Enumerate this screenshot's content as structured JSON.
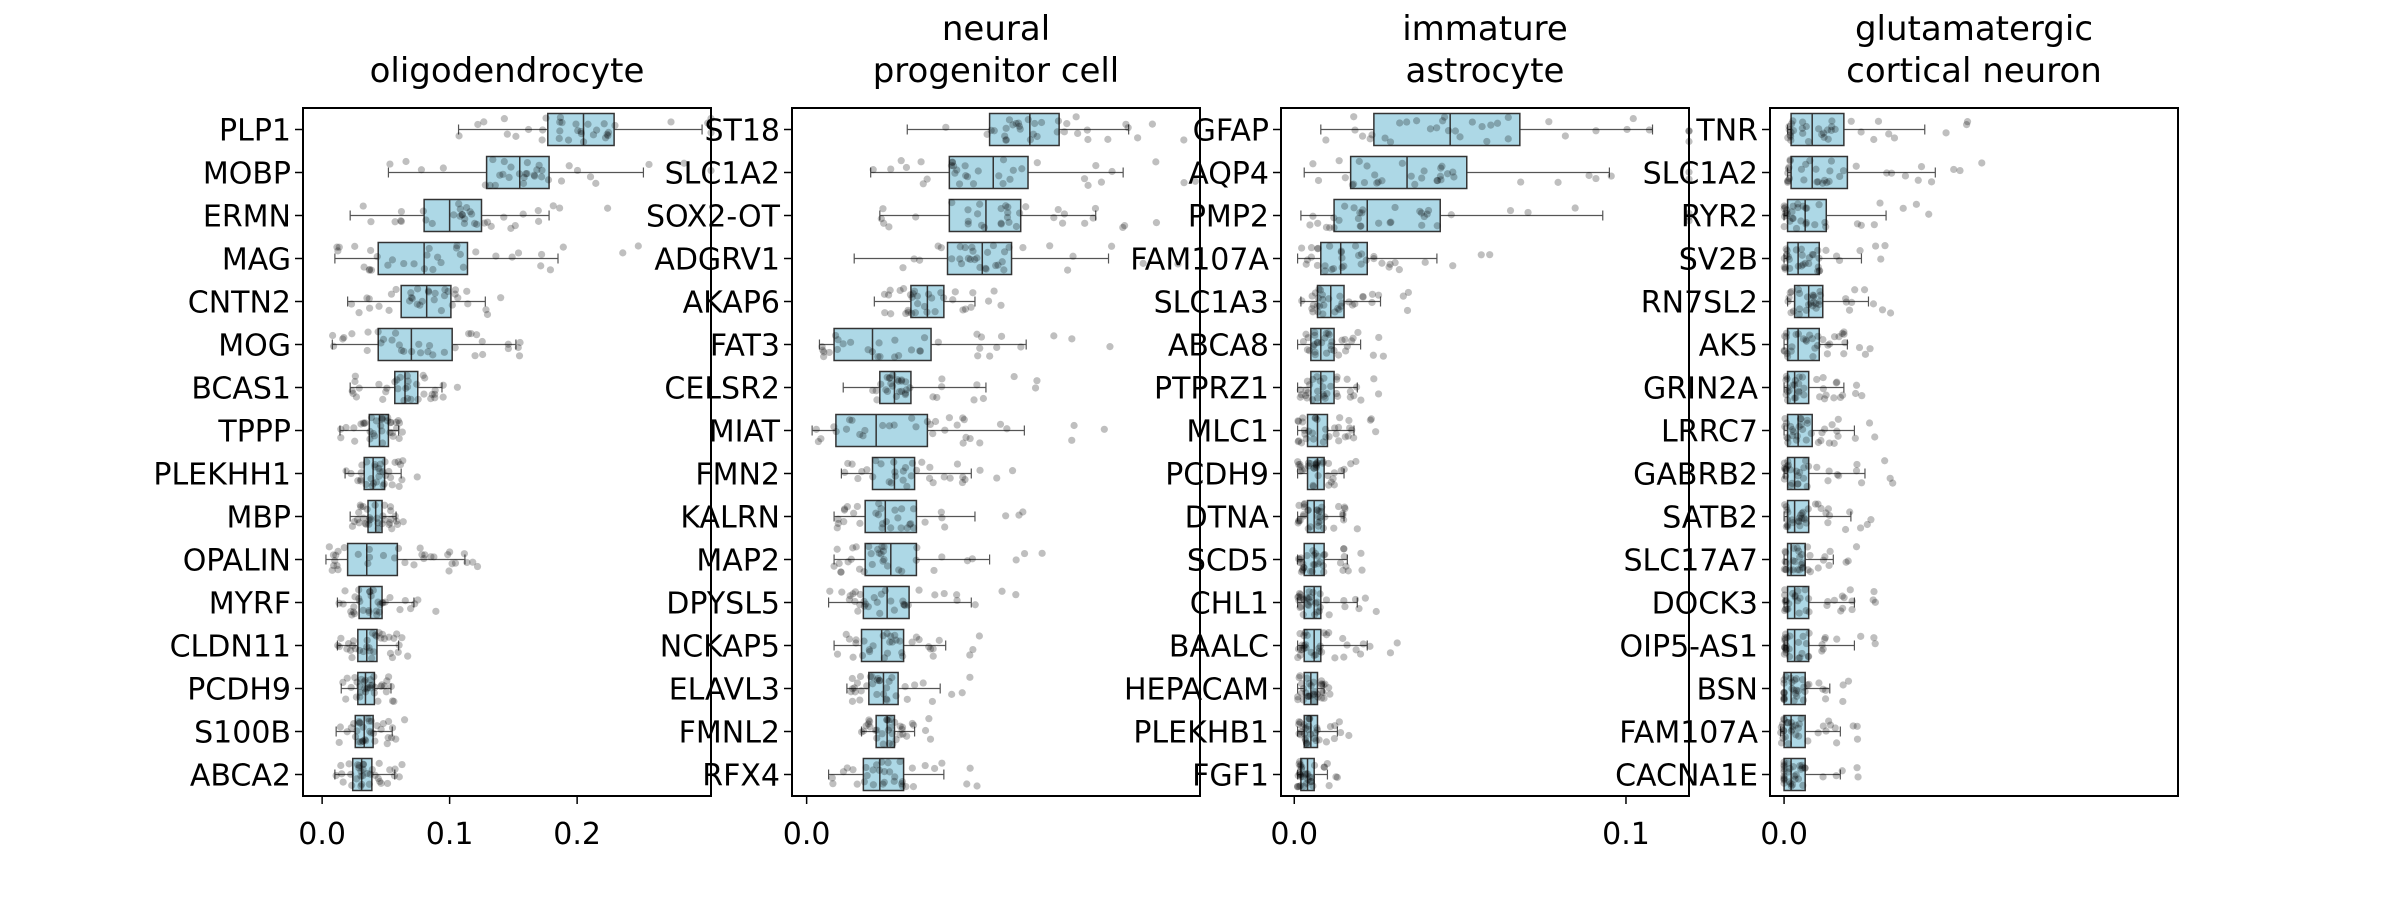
{
  "chart_data": [
    {
      "type": "box",
      "title": "oligodendrocyte",
      "xlim": [
        -0.015,
        0.305
      ],
      "xticks": [
        0.0,
        0.1,
        0.2
      ],
      "xtick_labels": [
        "0.0",
        "0.1",
        "0.2"
      ],
      "genes": [
        "PLP1",
        "MOBP",
        "ERMN",
        "MAG",
        "CNTN2",
        "MOG",
        "BCAS1",
        "TPPP",
        "PLEKHH1",
        "MBP",
        "OPALIN",
        "MYRF",
        "CLDN11",
        "PCDH9",
        "S100B",
        "ABCA2"
      ],
      "stats": [
        {
          "q1": 0.177,
          "median": 0.205,
          "q3": 0.229,
          "wmin": 0.107,
          "wmax": 0.298
        },
        {
          "q1": 0.129,
          "median": 0.155,
          "q3": 0.178,
          "wmin": 0.052,
          "wmax": 0.252
        },
        {
          "q1": 0.08,
          "median": 0.1,
          "q3": 0.125,
          "wmin": 0.022,
          "wmax": 0.178
        },
        {
          "q1": 0.044,
          "median": 0.08,
          "q3": 0.114,
          "wmin": 0.01,
          "wmax": 0.185
        },
        {
          "q1": 0.062,
          "median": 0.082,
          "q3": 0.101,
          "wmin": 0.02,
          "wmax": 0.128
        },
        {
          "q1": 0.044,
          "median": 0.07,
          "q3": 0.102,
          "wmin": 0.008,
          "wmax": 0.152
        },
        {
          "q1": 0.057,
          "median": 0.065,
          "q3": 0.075,
          "wmin": 0.022,
          "wmax": 0.094
        },
        {
          "q1": 0.037,
          "median": 0.045,
          "q3": 0.052,
          "wmin": 0.014,
          "wmax": 0.06
        },
        {
          "q1": 0.033,
          "median": 0.04,
          "q3": 0.049,
          "wmin": 0.018,
          "wmax": 0.062
        },
        {
          "q1": 0.036,
          "median": 0.042,
          "q3": 0.047,
          "wmin": 0.022,
          "wmax": 0.058
        },
        {
          "q1": 0.02,
          "median": 0.035,
          "q3": 0.059,
          "wmin": 0.003,
          "wmax": 0.112
        },
        {
          "q1": 0.029,
          "median": 0.038,
          "q3": 0.047,
          "wmin": 0.012,
          "wmax": 0.072
        },
        {
          "q1": 0.028,
          "median": 0.035,
          "q3": 0.043,
          "wmin": 0.012,
          "wmax": 0.06
        },
        {
          "q1": 0.028,
          "median": 0.034,
          "q3": 0.041,
          "wmin": 0.015,
          "wmax": 0.054
        },
        {
          "q1": 0.026,
          "median": 0.033,
          "q3": 0.04,
          "wmin": 0.011,
          "wmax": 0.055
        },
        {
          "q1": 0.024,
          "median": 0.031,
          "q3": 0.039,
          "wmin": 0.01,
          "wmax": 0.057
        }
      ]
    },
    {
      "type": "box",
      "title": "neural\nprogenitor cell",
      "xlim": [
        -0.008,
        0.215
      ],
      "xticks": [
        0.0
      ],
      "xtick_labels": [
        "0.0"
      ],
      "genes": [
        "ST18",
        "SLC1A2",
        "SOX2-OT",
        "ADGRV1",
        "AKAP6",
        "FAT3",
        "CELSR2",
        "MIAT",
        "FMN2",
        "KALRN",
        "MAP2",
        "DPYSL5",
        "NCKAP5",
        "ELAVL3",
        "FMNL2",
        "RFX4"
      ],
      "stats": [
        {
          "q1": 0.1,
          "median": 0.122,
          "q3": 0.138,
          "wmin": 0.055,
          "wmax": 0.176
        },
        {
          "q1": 0.078,
          "median": 0.102,
          "q3": 0.121,
          "wmin": 0.035,
          "wmax": 0.173
        },
        {
          "q1": 0.078,
          "median": 0.098,
          "q3": 0.117,
          "wmin": 0.04,
          "wmax": 0.158
        },
        {
          "q1": 0.077,
          "median": 0.096,
          "q3": 0.112,
          "wmin": 0.026,
          "wmax": 0.165
        },
        {
          "q1": 0.057,
          "median": 0.066,
          "q3": 0.075,
          "wmin": 0.037,
          "wmax": 0.092
        },
        {
          "q1": 0.015,
          "median": 0.036,
          "q3": 0.068,
          "wmin": 0.007,
          "wmax": 0.12
        },
        {
          "q1": 0.04,
          "median": 0.048,
          "q3": 0.057,
          "wmin": 0.02,
          "wmax": 0.098
        },
        {
          "q1": 0.016,
          "median": 0.038,
          "q3": 0.066,
          "wmin": 0.003,
          "wmax": 0.119
        },
        {
          "q1": 0.036,
          "median": 0.048,
          "q3": 0.059,
          "wmin": 0.019,
          "wmax": 0.09
        },
        {
          "q1": 0.032,
          "median": 0.043,
          "q3": 0.06,
          "wmin": 0.015,
          "wmax": 0.092
        },
        {
          "q1": 0.032,
          "median": 0.046,
          "q3": 0.06,
          "wmin": 0.015,
          "wmax": 0.1
        },
        {
          "q1": 0.031,
          "median": 0.044,
          "q3": 0.056,
          "wmin": 0.012,
          "wmax": 0.09
        },
        {
          "q1": 0.03,
          "median": 0.041,
          "q3": 0.053,
          "wmin": 0.015,
          "wmax": 0.076
        },
        {
          "q1": 0.034,
          "median": 0.042,
          "q3": 0.05,
          "wmin": 0.022,
          "wmax": 0.073
        },
        {
          "q1": 0.038,
          "median": 0.044,
          "q3": 0.048,
          "wmin": 0.03,
          "wmax": 0.059
        },
        {
          "q1": 0.031,
          "median": 0.04,
          "q3": 0.053,
          "wmin": 0.012,
          "wmax": 0.075
        }
      ]
    },
    {
      "type": "box",
      "title": "immature\nastrocyte",
      "xlim": [
        -0.004,
        0.119
      ],
      "xticks": [
        0.0,
        0.1
      ],
      "xtick_labels": [
        "0.0",
        "0.1"
      ],
      "genes": [
        "GFAP",
        "AQP4",
        "PMP2",
        "FAM107A",
        "SLC1A3",
        "ABCA8",
        "PTPRZ1",
        "MLC1",
        "PCDH9",
        "DTNA",
        "SCD5",
        "CHL1",
        "BAALC",
        "HEPACAM",
        "PLEKHB1",
        "FGF1"
      ],
      "stats": [
        {
          "q1": 0.024,
          "median": 0.047,
          "q3": 0.068,
          "wmin": 0.008,
          "wmax": 0.108
        },
        {
          "q1": 0.017,
          "median": 0.034,
          "q3": 0.052,
          "wmin": 0.003,
          "wmax": 0.095
        },
        {
          "q1": 0.012,
          "median": 0.022,
          "q3": 0.044,
          "wmin": 0.002,
          "wmax": 0.093
        },
        {
          "q1": 0.008,
          "median": 0.014,
          "q3": 0.022,
          "wmin": 0.001,
          "wmax": 0.043
        },
        {
          "q1": 0.007,
          "median": 0.011,
          "q3": 0.015,
          "wmin": 0.002,
          "wmax": 0.026
        },
        {
          "q1": 0.005,
          "median": 0.008,
          "q3": 0.012,
          "wmin": 0.001,
          "wmax": 0.02
        },
        {
          "q1": 0.005,
          "median": 0.008,
          "q3": 0.012,
          "wmin": 0.001,
          "wmax": 0.019
        },
        {
          "q1": 0.004,
          "median": 0.007,
          "q3": 0.01,
          "wmin": 0.001,
          "wmax": 0.018
        },
        {
          "q1": 0.004,
          "median": 0.007,
          "q3": 0.009,
          "wmin": 0.001,
          "wmax": 0.015
        },
        {
          "q1": 0.004,
          "median": 0.006,
          "q3": 0.009,
          "wmin": 0.001,
          "wmax": 0.015
        },
        {
          "q1": 0.003,
          "median": 0.006,
          "q3": 0.009,
          "wmin": 0.001,
          "wmax": 0.016
        },
        {
          "q1": 0.003,
          "median": 0.006,
          "q3": 0.008,
          "wmin": 0.001,
          "wmax": 0.019
        },
        {
          "q1": 0.003,
          "median": 0.006,
          "q3": 0.008,
          "wmin": 0.001,
          "wmax": 0.022
        },
        {
          "q1": 0.003,
          "median": 0.005,
          "q3": 0.007,
          "wmin": 0.001,
          "wmax": 0.009
        },
        {
          "q1": 0.003,
          "median": 0.005,
          "q3": 0.007,
          "wmin": 0.001,
          "wmax": 0.013
        },
        {
          "q1": 0.002,
          "median": 0.004,
          "q3": 0.006,
          "wmin": 0.001,
          "wmax": 0.01
        }
      ]
    },
    {
      "type": "box",
      "title": "glutamatergic\ncortical neuron",
      "xlim": [
        -0.004,
        0.112
      ],
      "xticks": [
        0.0
      ],
      "xtick_labels": [
        "0.0"
      ],
      "genes": [
        "TNR",
        "SLC1A2",
        "RYR2",
        "SV2B",
        "RN7SL2",
        "AK5",
        "GRIN2A",
        "LRRC7",
        "GABRB2",
        "SATB2",
        "SLC17A7",
        "DOCK3",
        "OIP5-AS1",
        "BSN",
        "FAM107A",
        "CACNA1E"
      ],
      "stats": [
        {
          "q1": 0.002,
          "median": 0.008,
          "q3": 0.017,
          "wmin": 0.001,
          "wmax": 0.04
        },
        {
          "q1": 0.002,
          "median": 0.008,
          "q3": 0.018,
          "wmin": 0.001,
          "wmax": 0.043
        },
        {
          "q1": 0.001,
          "median": 0.006,
          "q3": 0.012,
          "wmin": 0.0,
          "wmax": 0.029
        },
        {
          "q1": 0.001,
          "median": 0.004,
          "q3": 0.01,
          "wmin": 0.0,
          "wmax": 0.022
        },
        {
          "q1": 0.003,
          "median": 0.007,
          "q3": 0.011,
          "wmin": 0.001,
          "wmax": 0.024
        },
        {
          "q1": 0.001,
          "median": 0.004,
          "q3": 0.01,
          "wmin": 0.0,
          "wmax": 0.018
        },
        {
          "q1": 0.001,
          "median": 0.003,
          "q3": 0.007,
          "wmin": 0.0,
          "wmax": 0.017
        },
        {
          "q1": 0.001,
          "median": 0.004,
          "q3": 0.008,
          "wmin": 0.0,
          "wmax": 0.02
        },
        {
          "q1": 0.001,
          "median": 0.003,
          "q3": 0.007,
          "wmin": 0.0,
          "wmax": 0.023
        },
        {
          "q1": 0.001,
          "median": 0.003,
          "q3": 0.007,
          "wmin": 0.0,
          "wmax": 0.019
        },
        {
          "q1": 0.001,
          "median": 0.002,
          "q3": 0.006,
          "wmin": 0.0,
          "wmax": 0.014
        },
        {
          "q1": 0.001,
          "median": 0.003,
          "q3": 0.007,
          "wmin": 0.0,
          "wmax": 0.02
        },
        {
          "q1": 0.001,
          "median": 0.003,
          "q3": 0.007,
          "wmin": 0.0,
          "wmax": 0.02
        },
        {
          "q1": 0.0,
          "median": 0.002,
          "q3": 0.006,
          "wmin": 0.0,
          "wmax": 0.013
        },
        {
          "q1": 0.0,
          "median": 0.002,
          "q3": 0.006,
          "wmin": -0.001,
          "wmax": 0.016
        },
        {
          "q1": 0.0,
          "median": 0.002,
          "q3": 0.006,
          "wmin": 0.0,
          "wmax": 0.016
        }
      ]
    }
  ]
}
